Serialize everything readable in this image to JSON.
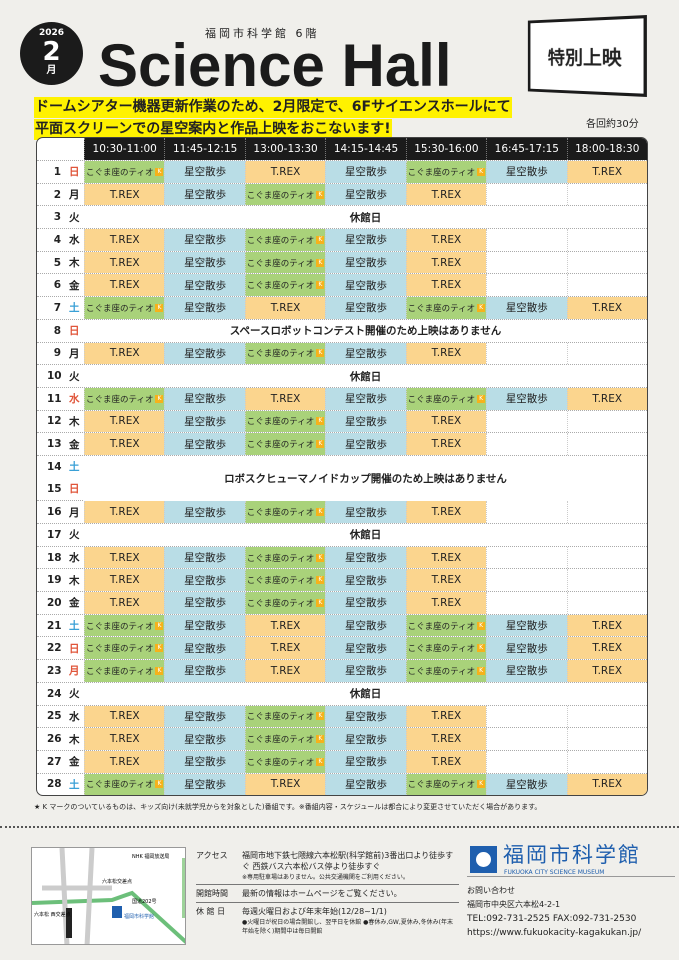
{
  "header": {
    "year": "2026",
    "month": "2",
    "month_unit": "月",
    "subtitle": "福岡市科学館 6階",
    "title": "Science Hall",
    "special": "特別上映",
    "lead": [
      "ドームシアター機器更新作業のため、2月限定で、6Fサイエンスホールにて",
      "平面スクリーンでの星空案内と作品上映をおこないます!"
    ],
    "duration": "各回約30分"
  },
  "colors": {
    "T.REX": "#fbd58e",
    "星空散歩": "#b9dde6",
    "こぐま座のティオ": "#a9d27a",
    "sunday": "#e0553a",
    "saturday": "#3aa0d6"
  },
  "programs": {
    "T": "T.REX",
    "H": "星空散歩",
    "K": "こぐま座のティオ"
  },
  "times": [
    "10:30-11:00",
    "11:45-12:15",
    "13:00-13:30",
    "14:15-14:45",
    "15:30-16:00",
    "16:45-17:15",
    "18:00-18:30"
  ],
  "rows": [
    {
      "d": "1",
      "w": "日",
      "c": "sun",
      "p": "KHTHKHT"
    },
    {
      "d": "2",
      "w": "月",
      "p": "THKHT"
    },
    {
      "d": "3",
      "w": "火",
      "msg": "休館日"
    },
    {
      "d": "4",
      "w": "水",
      "p": "THKHT"
    },
    {
      "d": "5",
      "w": "木",
      "p": "THKHT"
    },
    {
      "d": "6",
      "w": "金",
      "p": "THKHT"
    },
    {
      "d": "7",
      "w": "土",
      "c": "sat",
      "p": "KHTHKHT"
    },
    {
      "d": "8",
      "w": "日",
      "c": "sun",
      "msg": "スペースロボットコンテスト開催のため上映はありません"
    },
    {
      "d": "9",
      "w": "月",
      "p": "THKHT"
    },
    {
      "d": "10",
      "w": "火",
      "msg": "休館日"
    },
    {
      "d": "11",
      "w": "水",
      "c": "sun",
      "p": "KHTHKHT"
    },
    {
      "d": "12",
      "w": "木",
      "p": "THKHT"
    },
    {
      "d": "13",
      "w": "金",
      "p": "THKHT"
    },
    {
      "d": "14",
      "w": "土",
      "c": "sat",
      "msg": "ロボスクヒューマノイドカップ開催のため上映はありません",
      "rs": 2
    },
    {
      "d": "15",
      "w": "日",
      "c": "sun",
      "cont": true
    },
    {
      "d": "16",
      "w": "月",
      "p": "THKHT"
    },
    {
      "d": "17",
      "w": "火",
      "msg": "休館日"
    },
    {
      "d": "18",
      "w": "水",
      "p": "THKHT"
    },
    {
      "d": "19",
      "w": "木",
      "p": "THKHT"
    },
    {
      "d": "20",
      "w": "金",
      "p": "THKHT"
    },
    {
      "d": "21",
      "w": "土",
      "c": "sat",
      "p": "KHTHKHT"
    },
    {
      "d": "22",
      "w": "日",
      "c": "sun",
      "p": "KHTHKHT"
    },
    {
      "d": "23",
      "w": "月",
      "c": "sun",
      "p": "KHTHKHT"
    },
    {
      "d": "24",
      "w": "火",
      "msg": "休館日"
    },
    {
      "d": "25",
      "w": "水",
      "p": "THKHT"
    },
    {
      "d": "26",
      "w": "木",
      "p": "THKHT"
    },
    {
      "d": "27",
      "w": "金",
      "p": "THKHT"
    },
    {
      "d": "28",
      "w": "土",
      "c": "sat",
      "p": "KHTHKHT"
    }
  ],
  "note": "★ K マークのついているものは、キッズ向け(未就学児からを対象とした)番組です。※番組内容・スケジュールは都合により変更させていただく場合があります。",
  "info": [
    {
      "k": "アクセス",
      "v": "福岡市地下鉄七隈線六本松駅(科学館前)3番出口より徒歩すぐ 西鉄バス六本松バス停より徒歩すぐ",
      "s": "※専用駐車場はありません。公共交通機関をご利用ください。"
    },
    {
      "k": "開館時間",
      "v": "最新の情報はホームページをご覧ください。"
    },
    {
      "k": "休 館 日",
      "v": "毎週火曜日および年末年始(12/28~1/1)",
      "s": "●火曜日が祝日の場合開館し、翌平日を休館 ●春休み,GW,夏休み,冬休み(年末年始を除く)期間中は毎日開館"
    }
  ],
  "logo": {
    "jp": "福岡市科学館",
    "en": "FUKUOKA CITY SCIENCE MUSEUM"
  },
  "contact": {
    "label": "お問い合わせ",
    "address": "福岡市中央区六本松4-2-1",
    "tel": "TEL:092-731-2525 FAX:092-731-2530",
    "url": "https://www.fukuokacity-kagakukan.jp/"
  },
  "map": {
    "labels": [
      "NHK 福岡放送局",
      "六本松交差点",
      "国道202号",
      "六本松 西交差点",
      "福岡市科学館"
    ]
  }
}
